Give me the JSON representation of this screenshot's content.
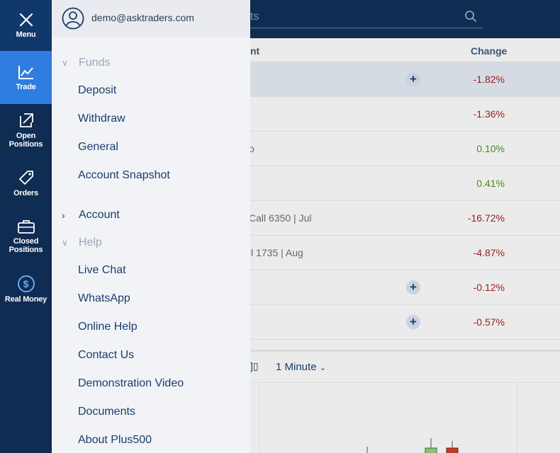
{
  "sidebar": {
    "menu_label": "Menu",
    "trade_label": "Trade",
    "open_positions_label": "Open\nPositions",
    "orders_label": "Orders",
    "closed_positions_label": "Closed\nPositions",
    "real_money_label": "Real Money"
  },
  "user": {
    "email": "demo@asktraders.com"
  },
  "menu": {
    "funds": {
      "title": "Funds",
      "items": [
        "Deposit",
        "Withdraw",
        "General",
        "Account Snapshot"
      ]
    },
    "account": {
      "title": "Account"
    },
    "help": {
      "title": "Help",
      "items": [
        "Live Chat",
        "WhatsApp",
        "Online Help",
        "Contact Us",
        "Demonstration Video",
        "Documents",
        "About Plus500"
      ]
    }
  },
  "search": {
    "partial_text": "ts"
  },
  "table": {
    "header_instrument_partial": "nt",
    "header_change": "Change",
    "rows": [
      {
        "name": "",
        "change": "-1.82%",
        "dir": "neg",
        "plus": true
      },
      {
        "name": "",
        "change": "-1.36%",
        "dir": "neg",
        "plus": false
      },
      {
        "name": "o",
        "change": "0.10%",
        "dir": "pos",
        "plus": false
      },
      {
        "name": "",
        "change": "0.41%",
        "dir": "pos",
        "plus": false
      },
      {
        "name": "Call 6350 | Jul",
        "change": "-16.72%",
        "dir": "neg",
        "plus": false
      },
      {
        "name": "ll 1735 | Aug",
        "change": "-4.87%",
        "dir": "neg",
        "plus": false
      },
      {
        "name": "",
        "change": "-0.12%",
        "dir": "neg",
        "plus": true
      },
      {
        "name": "",
        "change": "-0.57%",
        "dir": "neg",
        "plus": true
      }
    ]
  },
  "chart": {
    "timeframe": "1 Minute"
  },
  "colors": {
    "navy": "#0f2c52",
    "accent": "#2f7de0",
    "negative": "#9b1c1c",
    "positive": "#4a8a18"
  }
}
